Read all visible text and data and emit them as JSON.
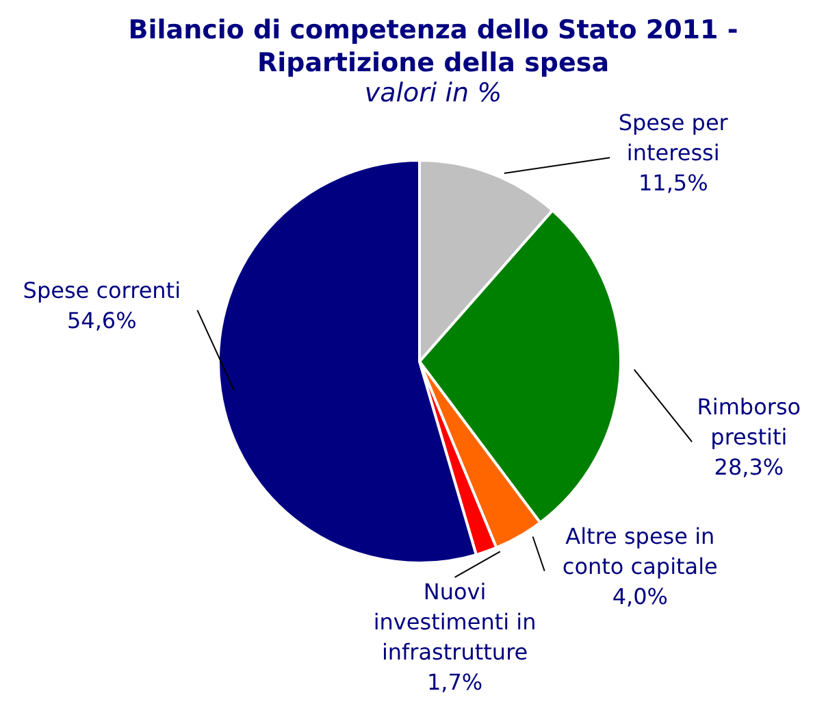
{
  "chart_data": {
    "type": "pie",
    "title": "Bilancio di competenza dello Stato 2011 - Ripartizione della spesa",
    "subtitle": "valori in %",
    "categories": [
      "Spese per interessi",
      "Rimborso prestiti",
      "Altre spese in conto capitale",
      "Nuovi investimenti in infrastrutture",
      "Spese correnti"
    ],
    "values": [
      11.5,
      28.3,
      4.0,
      1.7,
      54.6
    ],
    "colors": [
      "#c0c0c0",
      "#008000",
      "#ff6600",
      "#ff0000",
      "#000080"
    ],
    "value_labels": [
      "11,5%",
      "28,3%",
      "4,0%",
      "1,7%",
      "54,6%"
    ],
    "legend": false
  }
}
